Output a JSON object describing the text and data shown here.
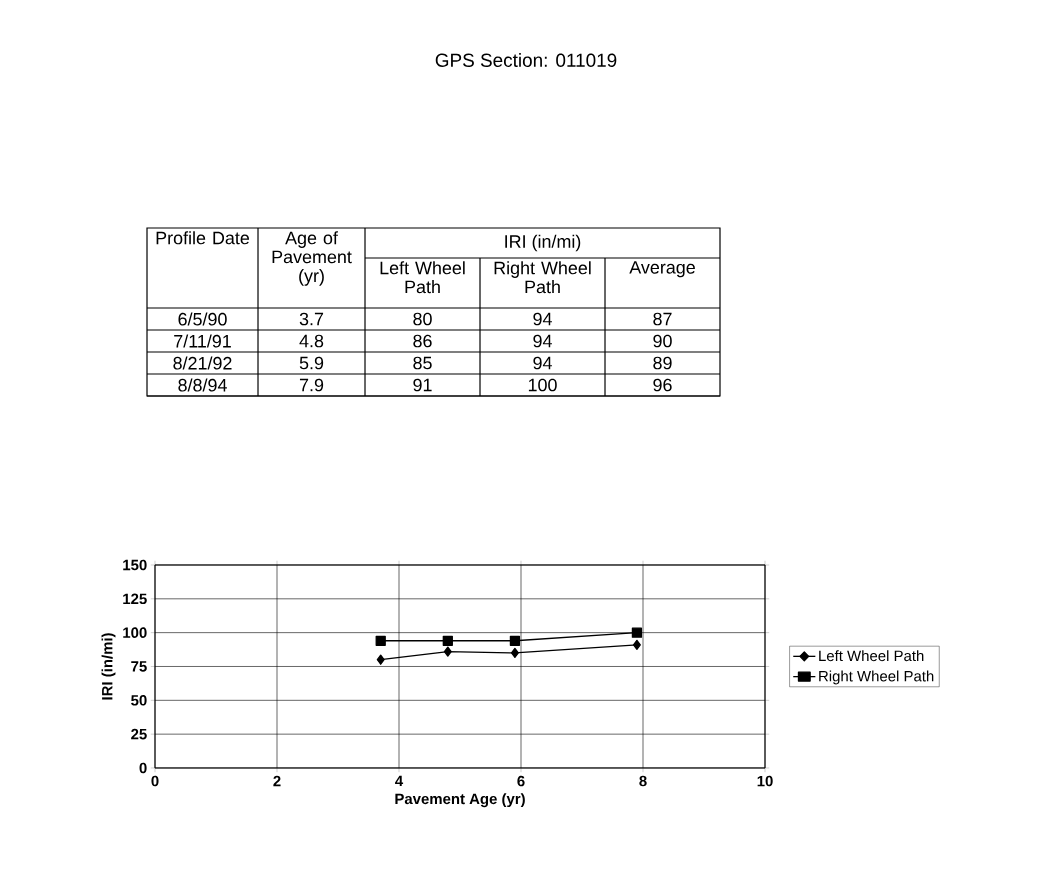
{
  "chart_data": [
    {
      "type": "other",
      "title": "GPS Section: 011019",
      "subtitle": "IRI (in/mi)",
      "categories": [
        "Profile Date",
        "Age of Pavement (yr)",
        "Left Wheel Path",
        "Right Wheel Path",
        "Average"
      ],
      "annotations": [
        "6/5/90",
        "3.7",
        "80",
        "94",
        "87",
        "7/11/91",
        "4.8",
        "86",
        "94",
        "90",
        "8/21/92",
        "5.9",
        "85",
        "94",
        "89",
        "8/8/94",
        "7.9",
        "91",
        "100",
        "96"
      ]
    },
    {
      "type": "line",
      "xlabel": "Pavement Age (yr)",
      "ylabel": "IRI (in/mi)",
      "x": [
        3.7,
        4.8,
        5.9,
        7.9
      ],
      "series": [
        {
          "name": "Left Wheel Path",
          "color": "#000000",
          "marker": "diamond",
          "values": [
            80,
            86,
            85,
            91
          ]
        },
        {
          "name": "Right Wheel Path",
          "color": "#000000",
          "marker": "square",
          "values": [
            94,
            94,
            94,
            100
          ]
        }
      ],
      "xlim": [
        0,
        10
      ],
      "xticks": [
        0,
        2,
        4,
        6,
        8,
        10
      ],
      "ylim": [
        0,
        150
      ],
      "yticks": [
        0,
        25,
        50,
        75,
        100,
        125,
        150
      ],
      "grid": true,
      "legend": "right"
    }
  ]
}
